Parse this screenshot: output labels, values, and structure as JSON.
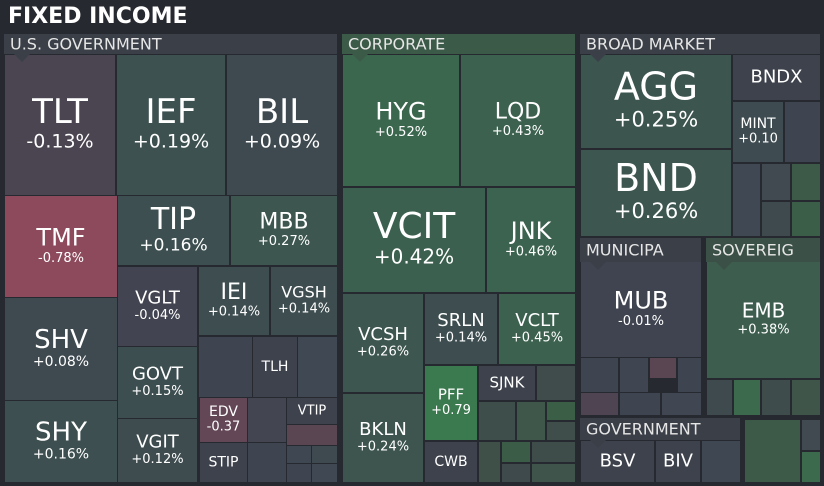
{
  "chart_data": {
    "type": "treemap",
    "title": "FIXED INCOME",
    "groups": [
      {
        "name": "U.S. GOVERNMENT",
        "tiles": [
          {
            "name": "TLT",
            "value": -0.13,
            "value_label": "-0.13%"
          },
          {
            "name": "IEF",
            "value": 0.19,
            "value_label": "+0.19%"
          },
          {
            "name": "BIL",
            "value": 0.09,
            "value_label": "+0.09%"
          },
          {
            "name": "TMF",
            "value": -0.78,
            "value_label": "-0.78%"
          },
          {
            "name": "SHV",
            "value": 0.08,
            "value_label": "+0.08%"
          },
          {
            "name": "SHY",
            "value": 0.16,
            "value_label": "+0.16%"
          },
          {
            "name": "TIP",
            "value": 0.16,
            "value_label": "+0.16%"
          },
          {
            "name": "MBB",
            "value": 0.27,
            "value_label": "+0.27%"
          },
          {
            "name": "VGLT",
            "value": -0.04,
            "value_label": "-0.04%"
          },
          {
            "name": "IEI",
            "value": 0.14,
            "value_label": "+0.14%"
          },
          {
            "name": "VGSH",
            "value": 0.14,
            "value_label": "+0.14%"
          },
          {
            "name": "GOVT",
            "value": 0.15,
            "value_label": "+0.15%"
          },
          {
            "name": "VGIT",
            "value": 0.12,
            "value_label": "+0.12%"
          },
          {
            "name": "TLH"
          },
          {
            "name": "EDV",
            "value": -0.37,
            "value_label": "-0.37"
          },
          {
            "name": "STIP"
          },
          {
            "name": "VTIP"
          }
        ]
      },
      {
        "name": "CORPORATE",
        "tiles": [
          {
            "name": "HYG",
            "value": 0.52,
            "value_label": "+0.52%"
          },
          {
            "name": "LQD",
            "value": 0.43,
            "value_label": "+0.43%"
          },
          {
            "name": "VCIT",
            "value": 0.42,
            "value_label": "+0.42%"
          },
          {
            "name": "JNK",
            "value": 0.46,
            "value_label": "+0.46%"
          },
          {
            "name": "VCSH",
            "value": 0.26,
            "value_label": "+0.26%"
          },
          {
            "name": "SRLN",
            "value": 0.14,
            "value_label": "+0.14%"
          },
          {
            "name": "VCLT",
            "value": 0.45,
            "value_label": "+0.45%"
          },
          {
            "name": "BKLN",
            "value": 0.24,
            "value_label": "+0.24%"
          },
          {
            "name": "PFF",
            "value": 0.79,
            "value_label": "+0.79"
          },
          {
            "name": "SJNK"
          },
          {
            "name": "CWB"
          }
        ]
      },
      {
        "name": "BROAD MARKET",
        "tiles": [
          {
            "name": "AGG",
            "value": 0.25,
            "value_label": "+0.25%"
          },
          {
            "name": "BND",
            "value": 0.26,
            "value_label": "+0.26%"
          },
          {
            "name": "BNDX"
          },
          {
            "name": "MINT",
            "value": 0.1,
            "value_label": "+0.10"
          }
        ]
      },
      {
        "name": "MUNICIPA",
        "tiles": [
          {
            "name": "MUB",
            "value": -0.01,
            "value_label": "-0.01%"
          }
        ]
      },
      {
        "name": "SOVEREIG",
        "tiles": [
          {
            "name": "EMB",
            "value": 0.38,
            "value_label": "+0.38%"
          }
        ]
      },
      {
        "name": "GOVERNMENT",
        "tiles": [
          {
            "name": "BSV"
          },
          {
            "name": "BIV"
          }
        ]
      }
    ]
  }
}
